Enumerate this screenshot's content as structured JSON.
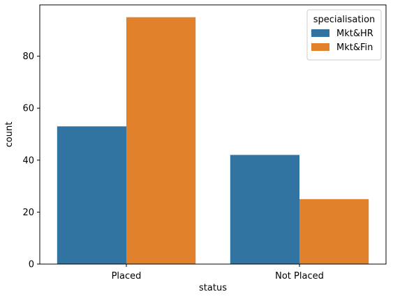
{
  "chart_data": {
    "type": "bar",
    "categories": [
      "Placed",
      "Not Placed"
    ],
    "series": [
      {
        "name": "Mkt&HR",
        "values": [
          53,
          42
        ],
        "color": "#3274a1"
      },
      {
        "name": "Mkt&Fin",
        "values": [
          95,
          25
        ],
        "color": "#e1812c"
      }
    ],
    "xlabel": "status",
    "ylabel": "count",
    "ylim": [
      0,
      99.75
    ],
    "yticks": [
      0,
      20,
      40,
      60,
      80
    ],
    "grid": false,
    "legend": {
      "title": "specialisation",
      "placement": "top-right"
    }
  }
}
